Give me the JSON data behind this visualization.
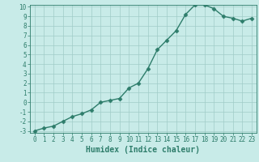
{
  "x": [
    0,
    1,
    2,
    3,
    4,
    5,
    6,
    7,
    8,
    9,
    10,
    11,
    12,
    13,
    14,
    15,
    16,
    17,
    18,
    19,
    20,
    21,
    22,
    23
  ],
  "y": [
    -3,
    -2.7,
    -2.5,
    -2.0,
    -1.5,
    -1.2,
    -0.8,
    0.0,
    0.2,
    0.4,
    1.5,
    2.0,
    3.5,
    5.5,
    6.5,
    7.5,
    9.2,
    10.2,
    10.2,
    9.8,
    9.0,
    8.8,
    8.5,
    8.8
  ],
  "color": "#2e7d6b",
  "bg_color": "#c8ebe8",
  "grid_color": "#a0ccc8",
  "xlabel": "Humidex (Indice chaleur)",
  "ylim": [
    -3,
    10
  ],
  "xlim": [
    -0.5,
    23.5
  ],
  "yticks": [
    -3,
    -2,
    -1,
    0,
    1,
    2,
    3,
    4,
    5,
    6,
    7,
    8,
    9,
    10
  ],
  "xticks": [
    0,
    1,
    2,
    3,
    4,
    5,
    6,
    7,
    8,
    9,
    10,
    11,
    12,
    13,
    14,
    15,
    16,
    17,
    18,
    19,
    20,
    21,
    22,
    23
  ],
  "marker": "D",
  "markersize": 2.5,
  "linewidth": 1.0,
  "xlabel_fontsize": 7,
  "tick_fontsize": 5.5
}
